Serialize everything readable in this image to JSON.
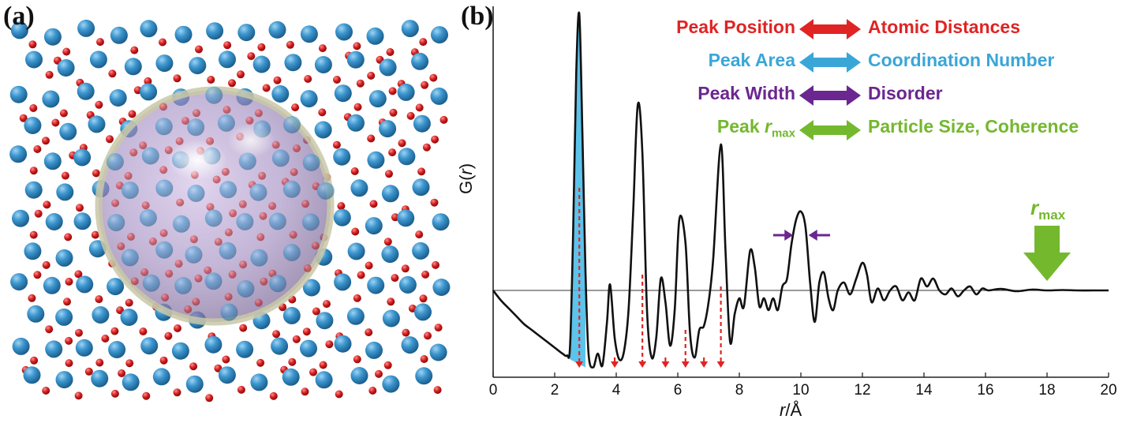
{
  "panels": {
    "a": {
      "label": "(a)"
    },
    "b": {
      "label": "(b)"
    }
  },
  "legend": [
    {
      "left": "Peak Position",
      "right": "Atomic Distances",
      "color": "#e02424"
    },
    {
      "left": "Peak Area",
      "right": "Coordination Number",
      "color": "#3aa6d8"
    },
    {
      "left": "Peak Width",
      "right": "Disorder",
      "color": "#6b2690"
    },
    {
      "left_prefix": "Peak ",
      "left_italic": "r",
      "left_sub": "max",
      "right": "Particle Size, Coherence",
      "color": "#74b82e"
    }
  ],
  "annotations": {
    "rmax_italic": "r",
    "rmax_sub": "max",
    "rmax_color": "#74b82e",
    "rmax_position_r": 18.0,
    "width_arrow_color": "#6b2690",
    "peak_markers_color": "#e02424"
  },
  "chart_data": {
    "type": "line",
    "title": "",
    "xlabel_italic": "r",
    "xlabel_rest": "/Å",
    "ylabel_italic": "r",
    "ylabel_prefix": "G(",
    "ylabel_suffix": ")",
    "xlim": [
      0,
      20
    ],
    "ylim": [
      -2.2,
      7.2
    ],
    "xticks": [
      "0",
      "2",
      "4",
      "6",
      "8",
      "10",
      "12",
      "14",
      "16",
      "18",
      "20"
    ],
    "baseline": 0,
    "highlight_peak": {
      "r": 2.8,
      "color": "#3fb8e6",
      "from": 2.45,
      "to": 3.05
    },
    "peak_marker_r": [
      2.8,
      3.95,
      4.85,
      5.6,
      6.25,
      6.85,
      7.4
    ],
    "series": [
      {
        "name": "G(r)",
        "x": [
          0,
          0.25,
          0.5,
          0.75,
          1,
          1.25,
          1.5,
          1.75,
          2,
          2.25,
          2.4,
          2.5,
          2.6,
          2.7,
          2.8,
          2.9,
          3.0,
          3.1,
          3.25,
          3.4,
          3.55,
          3.7,
          3.8,
          3.95,
          4.1,
          4.25,
          4.4,
          4.55,
          4.7,
          4.85,
          5.0,
          5.15,
          5.3,
          5.45,
          5.6,
          5.75,
          5.9,
          6.05,
          6.25,
          6.4,
          6.55,
          6.7,
          6.85,
          7.0,
          7.15,
          7.4,
          7.55,
          7.7,
          7.85,
          8.0,
          8.15,
          8.35,
          8.5,
          8.65,
          8.8,
          8.95,
          9.1,
          9.25,
          9.4,
          9.55,
          9.7,
          9.85,
          10.0,
          10.15,
          10.3,
          10.45,
          10.6,
          10.75,
          10.9,
          11.05,
          11.2,
          11.4,
          11.6,
          11.8,
          12.0,
          12.15,
          12.3,
          12.5,
          12.7,
          12.9,
          13.1,
          13.3,
          13.5,
          13.7,
          13.9,
          14.1,
          14.3,
          14.5,
          14.7,
          14.9,
          15.1,
          15.3,
          15.5,
          15.7,
          15.9,
          16.1,
          16.5,
          17.0,
          17.5,
          18.0,
          18.5,
          19.0,
          19.5,
          20.0
        ],
        "values": [
          0,
          -0.25,
          -0.45,
          -0.65,
          -0.85,
          -1.0,
          -1.15,
          -1.3,
          -1.45,
          -1.6,
          -1.65,
          -1.4,
          1.5,
          5.5,
          7.0,
          4.0,
          0.5,
          -1.6,
          -1.95,
          -1.6,
          -1.9,
          -0.8,
          0.15,
          -1.2,
          -1.75,
          -1.55,
          -0.5,
          2.0,
          4.7,
          3.5,
          -0.5,
          -1.7,
          -1.2,
          0.3,
          -0.3,
          -1.4,
          -0.5,
          1.8,
          1.2,
          -1.1,
          -1.7,
          -1.0,
          -0.9,
          -0.3,
          0.8,
          3.7,
          1.0,
          -1.3,
          -0.6,
          -0.2,
          -0.4,
          1.0,
          0.6,
          -0.4,
          -0.2,
          -0.5,
          -0.2,
          -0.5,
          0.1,
          0.3,
          1.2,
          1.8,
          2.0,
          1.6,
          0.2,
          -0.8,
          0.2,
          0.45,
          -0.2,
          -0.5,
          0.0,
          0.2,
          -0.1,
          0.3,
          0.7,
          0.4,
          -0.3,
          0.05,
          -0.25,
          0.0,
          0.1,
          -0.25,
          -0.05,
          -0.25,
          0.3,
          0.1,
          0.3,
          0.0,
          -0.1,
          0.05,
          -0.15,
          0.0,
          0.1,
          -0.1,
          0.05,
          0.0,
          0.04,
          -0.02,
          0.02,
          0.0,
          0.01,
          0.0,
          0.0,
          0.0
        ]
      }
    ]
  }
}
